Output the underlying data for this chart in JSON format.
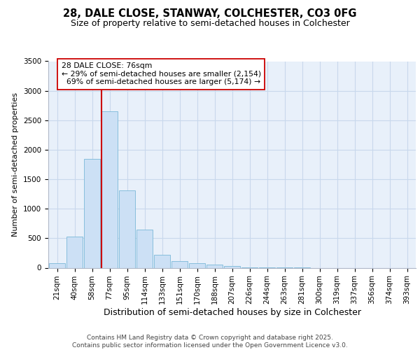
{
  "title_line1": "28, DALE CLOSE, STANWAY, COLCHESTER, CO3 0FG",
  "title_line2": "Size of property relative to semi-detached houses in Colchester",
  "xlabel": "Distribution of semi-detached houses by size in Colchester",
  "ylabel": "Number of semi-detached properties",
  "footer": "Contains HM Land Registry data © Crown copyright and database right 2025.\nContains public sector information licensed under the Open Government Licence v3.0.",
  "bin_labels": [
    "21sqm",
    "40sqm",
    "58sqm",
    "77sqm",
    "95sqm",
    "114sqm",
    "133sqm",
    "151sqm",
    "170sqm",
    "188sqm",
    "207sqm",
    "226sqm",
    "244sqm",
    "263sqm",
    "281sqm",
    "300sqm",
    "319sqm",
    "337sqm",
    "356sqm",
    "374sqm",
    "393sqm"
  ],
  "bar_values": [
    80,
    530,
    1850,
    2650,
    1310,
    650,
    220,
    110,
    80,
    50,
    30,
    10,
    5,
    2,
    1,
    0,
    0,
    0,
    0,
    0,
    0
  ],
  "bar_color": "#cce0f5",
  "bar_edge_color": "#7ab8d8",
  "vline_color": "#cc0000",
  "annotation_box_color": "#ffffff",
  "annotation_box_edge": "#cc0000",
  "ylim_max": 3500,
  "yticks": [
    0,
    500,
    1000,
    1500,
    2000,
    2500,
    3000,
    3500
  ],
  "grid_color": "#c8d8ec",
  "bg_color": "#e8f0fa",
  "property_label": "28 DALE CLOSE: 76sqm",
  "pct_smaller": 29,
  "pct_larger": 69,
  "n_smaller": 2154,
  "n_larger": 5174,
  "title1_fontsize": 10.5,
  "title2_fontsize": 9,
  "ylabel_fontsize": 8,
  "xlabel_fontsize": 9,
  "tick_fontsize": 7.5,
  "footer_fontsize": 6.5
}
